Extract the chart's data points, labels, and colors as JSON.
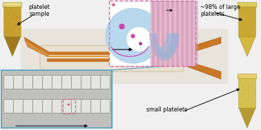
{
  "bg_color": "#f0f0f0",
  "texts": {
    "platelet_sample": "platelet\nsample",
    "large_platelets": "~98% of large\nplatelets",
    "small_platelets": "small platelets"
  },
  "tube_body": "#d4a83a",
  "tube_fill_top": "#c8a030",
  "tube_fill_bot": "#b89028",
  "tube_cap": "#e8c870",
  "tube3_fill": "#e0cc70",
  "orange_tube": "#c87828",
  "orange_dark": "#a06018",
  "device_bg": "#f0ece4",
  "device_edge": "#d8cca8",
  "pink_box_border": "#d868a0",
  "pink_box_bg": "#fde8f4",
  "blue_light": "#b8d8ee",
  "blue_med": "#90b8d8",
  "pink_stripe": "#e8b8cc",
  "pink_dark_stripe": "#c898b8",
  "purple_stripe": "#b8a8cc",
  "asterisk_color": "#cc4488",
  "dot_large": "#cc44aa",
  "dot_small": "#aa3388",
  "micro_bg": "#c0c0bc",
  "micro_border": "#50a0c0",
  "micro_cell_bg": "#e4e4e0",
  "micro_cell_ec": "#888880",
  "flow_arrow": "#000000",
  "schem_arrow": "#000000",
  "label_arrow": "#000000"
}
